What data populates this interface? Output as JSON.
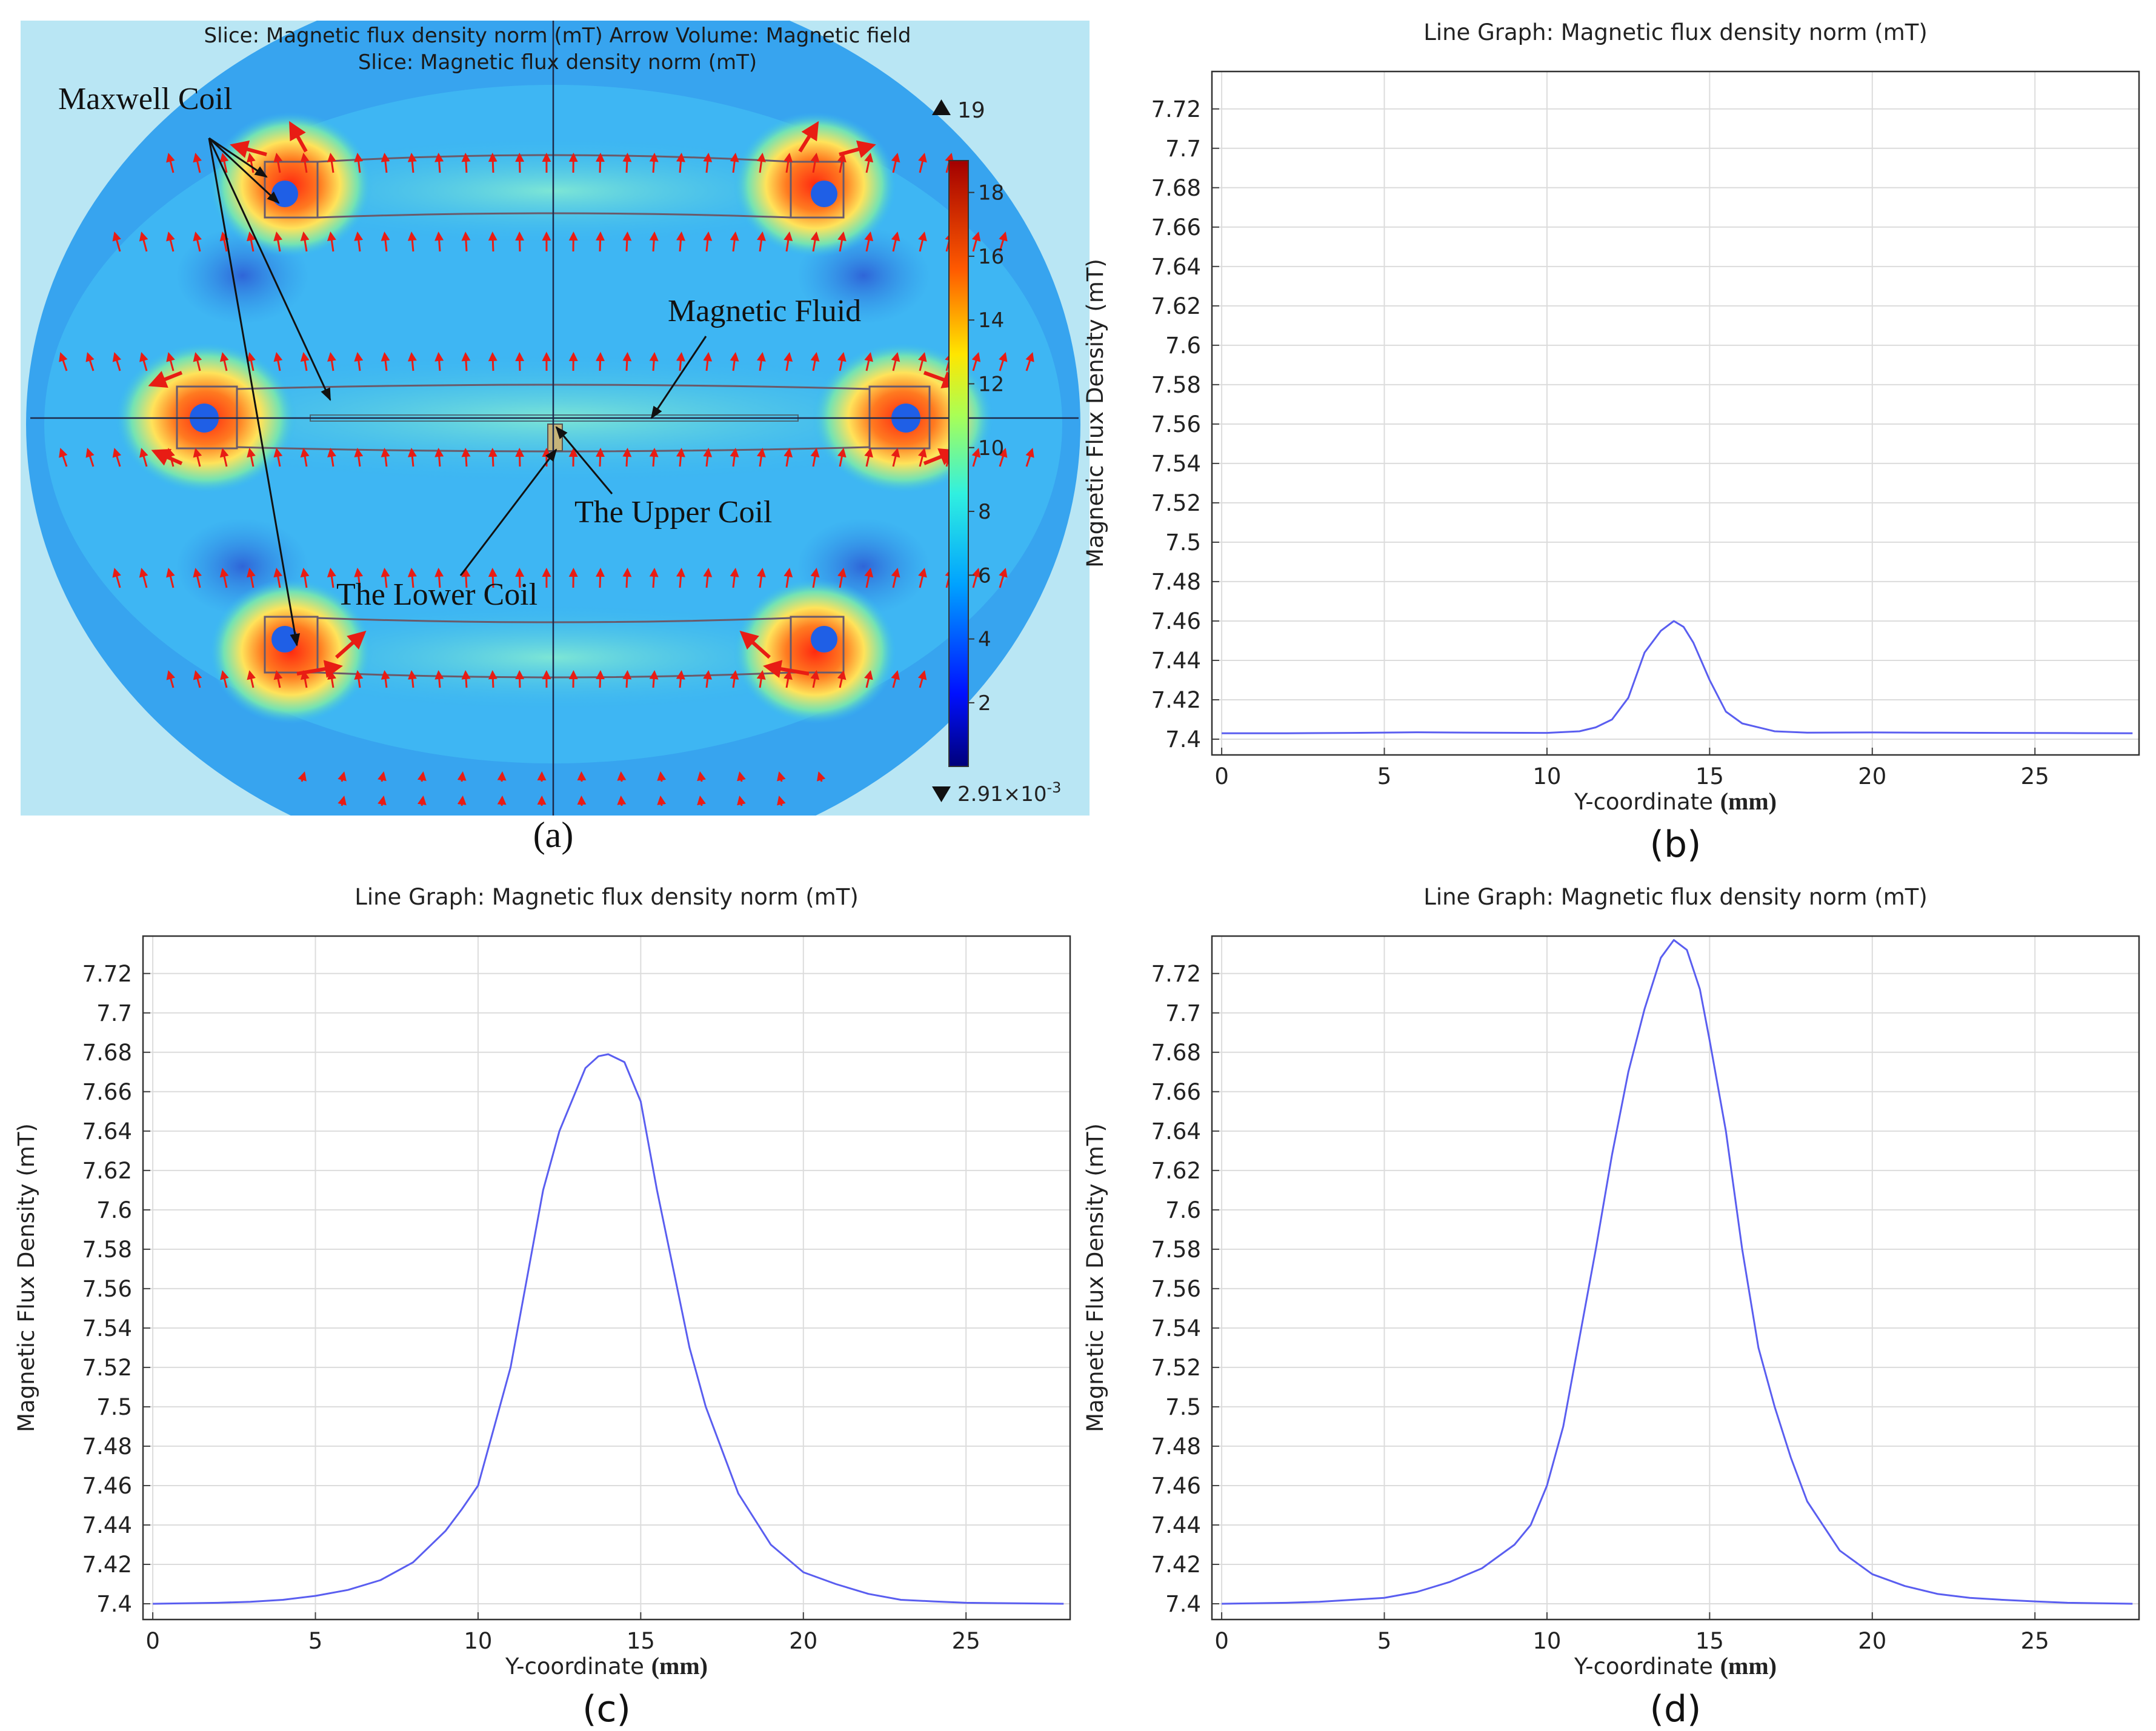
{
  "panel_a": {
    "title_line1": "Slice: Magnetic flux density norm (mT)  Arrow Volume: Magnetic field",
    "title_line2": "Slice: Magnetic flux density norm (mT)",
    "labels": {
      "maxwell": "Maxwell Coil",
      "fluid": "Magnetic Fluid",
      "upper": "The Upper Coil",
      "lower": "The Lower Coil"
    },
    "colorbar": {
      "max_label": "19",
      "min_label": "2.91×10",
      "min_exp": "-3",
      "ticks": [
        2,
        4,
        6,
        8,
        10,
        12,
        14,
        16,
        18
      ],
      "min": 0.00291,
      "max": 19
    },
    "caption": "(a)"
  },
  "chart_data": [
    {
      "id": "b",
      "type": "line",
      "title": "Line Graph: Magnetic flux density norm (mT)",
      "xlabel": "Y-coordinate",
      "xlabel_unit": "(mm)",
      "ylabel": "Magnetic Flux Density (mT)",
      "xlim": [
        -0.3,
        28.2
      ],
      "ylim": [
        7.392,
        7.739
      ],
      "xticks": [
        0,
        5,
        10,
        15,
        20,
        25
      ],
      "yticks": [
        7.4,
        7.42,
        7.44,
        7.46,
        7.48,
        7.5,
        7.52,
        7.54,
        7.56,
        7.58,
        7.6,
        7.62,
        7.64,
        7.66,
        7.68,
        7.7,
        7.72
      ],
      "grid": true,
      "caption": "(b)",
      "series": [
        {
          "name": "Magnetic flux density norm",
          "color": "#5a5ef0",
          "x": [
            0,
            2,
            4,
            6,
            8,
            10,
            11,
            11.5,
            12,
            12.5,
            13,
            13.5,
            13.9,
            14.2,
            14.5,
            15,
            15.5,
            16,
            17,
            18,
            20,
            22,
            24,
            26,
            28
          ],
          "y": [
            7.403,
            7.403,
            7.4032,
            7.4035,
            7.4033,
            7.4032,
            7.404,
            7.406,
            7.41,
            7.421,
            7.444,
            7.455,
            7.46,
            7.457,
            7.449,
            7.43,
            7.414,
            7.408,
            7.404,
            7.4033,
            7.4034,
            7.4033,
            7.4032,
            7.4031,
            7.403
          ]
        }
      ]
    },
    {
      "id": "c",
      "type": "line",
      "title": "Line Graph: Magnetic flux density norm (mT)",
      "xlabel": "Y-coordinate",
      "xlabel_unit": "(mm)",
      "ylabel": "Magnetic Flux Density (mT)",
      "xlim": [
        -0.3,
        28.2
      ],
      "ylim": [
        7.392,
        7.739
      ],
      "xticks": [
        0,
        5,
        10,
        15,
        20,
        25
      ],
      "yticks": [
        7.4,
        7.42,
        7.44,
        7.46,
        7.48,
        7.5,
        7.52,
        7.54,
        7.56,
        7.58,
        7.6,
        7.62,
        7.64,
        7.66,
        7.68,
        7.7,
        7.72
      ],
      "grid": true,
      "caption": "(c)",
      "series": [
        {
          "name": "Magnetic flux density norm",
          "color": "#5a5ef0",
          "x": [
            0,
            2,
            3,
            4,
            5,
            6,
            7,
            8,
            9,
            9.5,
            10,
            10.5,
            11,
            11.5,
            12,
            12.5,
            13,
            13.3,
            13.7,
            14,
            14.5,
            15,
            15.5,
            16,
            16.5,
            17,
            18,
            19,
            20,
            21,
            22,
            23,
            24,
            25,
            26,
            28
          ],
          "y": [
            7.4,
            7.4005,
            7.401,
            7.402,
            7.404,
            7.407,
            7.412,
            7.421,
            7.437,
            7.448,
            7.46,
            7.49,
            7.52,
            7.565,
            7.61,
            7.64,
            7.66,
            7.672,
            7.678,
            7.679,
            7.675,
            7.655,
            7.61,
            7.57,
            7.53,
            7.5,
            7.456,
            7.43,
            7.416,
            7.41,
            7.405,
            7.402,
            7.4012,
            7.4005,
            7.4003,
            7.4
          ]
        }
      ]
    },
    {
      "id": "d",
      "type": "line",
      "title": "Line Graph: Magnetic flux density norm (mT)",
      "xlabel": "Y-coordinate",
      "xlabel_unit": "(mm)",
      "ylabel": "Magnetic Flux Density (mT)",
      "xlim": [
        -0.3,
        28.2
      ],
      "ylim": [
        7.392,
        7.739
      ],
      "xticks": [
        0,
        5,
        10,
        15,
        20,
        25
      ],
      "yticks": [
        7.4,
        7.42,
        7.44,
        7.46,
        7.48,
        7.5,
        7.52,
        7.54,
        7.56,
        7.58,
        7.6,
        7.62,
        7.64,
        7.66,
        7.68,
        7.7,
        7.72
      ],
      "grid": true,
      "caption": "(d)",
      "series": [
        {
          "name": "Magnetic flux density norm",
          "color": "#5a5ef0",
          "x": [
            0,
            2,
            3,
            4,
            5,
            6,
            7,
            8,
            9,
            9.5,
            10,
            10.5,
            11,
            11.5,
            12,
            12.5,
            13,
            13.5,
            13.9,
            14.3,
            14.7,
            15,
            15.5,
            16,
            16.5,
            17,
            17.5,
            18,
            19,
            20,
            21,
            22,
            23,
            24,
            25,
            26,
            28
          ],
          "y": [
            7.4,
            7.4005,
            7.401,
            7.402,
            7.403,
            7.406,
            7.411,
            7.418,
            7.43,
            7.44,
            7.46,
            7.49,
            7.535,
            7.58,
            7.628,
            7.67,
            7.702,
            7.728,
            7.737,
            7.732,
            7.712,
            7.686,
            7.64,
            7.58,
            7.53,
            7.5,
            7.474,
            7.452,
            7.427,
            7.415,
            7.409,
            7.405,
            7.403,
            7.402,
            7.4012,
            7.4005,
            7.4
          ]
        }
      ]
    }
  ]
}
